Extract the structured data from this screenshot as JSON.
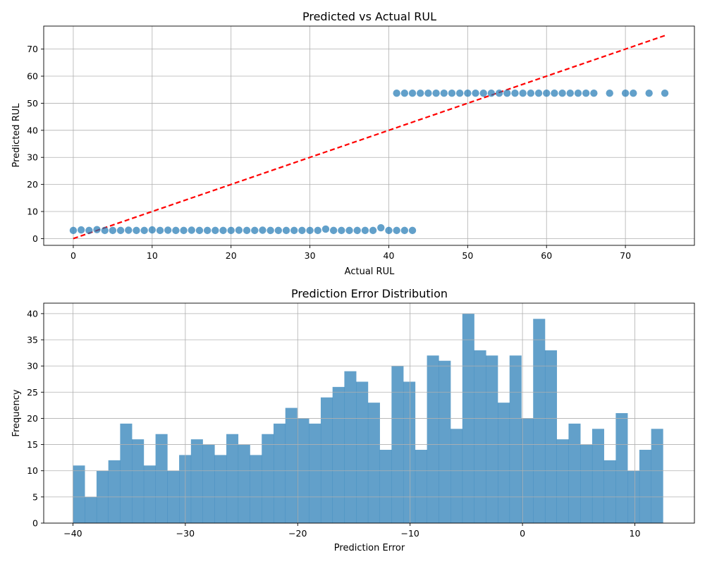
{
  "chart_data": [
    {
      "type": "scatter",
      "title": "Predicted vs Actual RUL",
      "xlabel": "Actual RUL",
      "ylabel": "Predicted RUL",
      "xlim": [
        -3.75,
        78.75
      ],
      "ylim": [
        -2.5,
        78.5
      ],
      "xticks": [
        0,
        10,
        20,
        30,
        40,
        50,
        60,
        70
      ],
      "yticks": [
        0,
        10,
        20,
        30,
        40,
        50,
        60,
        70
      ],
      "grid": true,
      "point_color": "#1f77b4",
      "reference_line": {
        "x": [
          0,
          75
        ],
        "y": [
          0,
          75
        ],
        "color": "#ff0000",
        "style": "dashed"
      },
      "series": [
        {
          "x": [
            0,
            1,
            2,
            3,
            4,
            5,
            6,
            7,
            8,
            9,
            10,
            11,
            12,
            13,
            14,
            15,
            16,
            17,
            18,
            19,
            20,
            21,
            22,
            23,
            24,
            25,
            26,
            27,
            28,
            29,
            30,
            31,
            32,
            33,
            34,
            35,
            36,
            37,
            38,
            39,
            40,
            41,
            42,
            43
          ],
          "y": [
            3.0,
            3.2,
            3.0,
            3.3,
            3.0,
            3.0,
            3.0,
            3.1,
            3.0,
            3.0,
            3.2,
            3.0,
            3.1,
            3.0,
            3.0,
            3.1,
            3.0,
            3.0,
            3.0,
            3.0,
            3.0,
            3.1,
            3.0,
            3.0,
            3.1,
            3.0,
            3.0,
            3.0,
            3.0,
            3.0,
            3.0,
            3.0,
            3.5,
            3.0,
            3.0,
            3.0,
            3.0,
            3.0,
            3.0,
            4.0,
            3.0,
            3.0,
            3.0,
            3.0
          ]
        },
        {
          "x": [
            41,
            42,
            43,
            44,
            45,
            46,
            47,
            48,
            49,
            50,
            51,
            52,
            53,
            54,
            55,
            56,
            57,
            58,
            59,
            60,
            61,
            62,
            63,
            64,
            65,
            66,
            68,
            70,
            71,
            73,
            75
          ],
          "y": [
            53.7,
            53.7,
            53.7,
            53.7,
            53.7,
            53.7,
            53.7,
            53.7,
            53.7,
            53.7,
            53.7,
            53.7,
            53.7,
            53.7,
            53.7,
            53.7,
            53.7,
            53.7,
            53.7,
            53.7,
            53.7,
            53.7,
            53.7,
            53.7,
            53.7,
            53.7,
            53.7,
            53.7,
            53.7,
            53.7,
            53.7
          ]
        }
      ]
    },
    {
      "type": "bar",
      "title": "Prediction Error Distribution",
      "xlabel": "Prediction Error",
      "ylabel": "Frequency",
      "xlim": [
        -42.6,
        15.3
      ],
      "ylim": [
        0,
        42
      ],
      "xticks": [
        -40,
        -30,
        -20,
        -10,
        0,
        10
      ],
      "yticks": [
        0,
        5,
        10,
        15,
        20,
        25,
        30,
        35,
        40
      ],
      "grid": true,
      "bar_color": "#1f77b4",
      "bin_start": -40.0,
      "bin_width": 1.05,
      "values": [
        11,
        5,
        10,
        12,
        19,
        16,
        11,
        17,
        10,
        13,
        16,
        15,
        13,
        17,
        15,
        13,
        17,
        19,
        22,
        20,
        19,
        24,
        26,
        29,
        27,
        23,
        14,
        30,
        27,
        14,
        32,
        31,
        18,
        40,
        33,
        32,
        23,
        32,
        20,
        39,
        33,
        16,
        19,
        15,
        18,
        12,
        21,
        10,
        14,
        18
      ]
    }
  ]
}
